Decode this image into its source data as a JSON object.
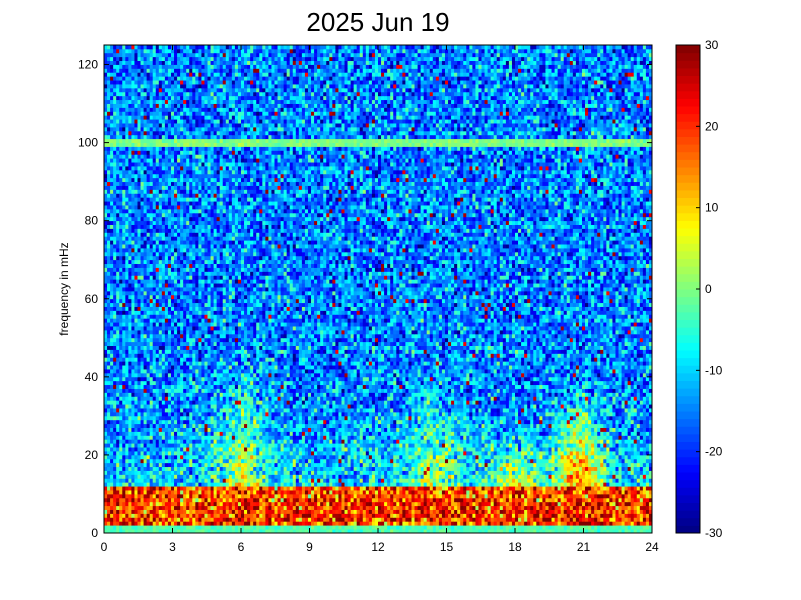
{
  "chart_data": {
    "type": "heatmap",
    "title": "2025 Jun 19",
    "xlabel": "",
    "ylabel": "frequency in mHz",
    "xlim": [
      0,
      24
    ],
    "ylim": [
      0,
      125
    ],
    "x_ticks": [
      0,
      3,
      6,
      9,
      12,
      15,
      18,
      21,
      24
    ],
    "y_ticks": [
      0,
      20,
      40,
      60,
      80,
      100,
      120
    ],
    "colorbar": {
      "colormap": "jet",
      "range": [
        -30,
        30
      ],
      "ticks": [
        -30,
        -20,
        -10,
        0,
        10,
        20,
        30
      ]
    },
    "grid": false,
    "features": {
      "background_level": -15,
      "horizontal_lines": [
        {
          "frequency": 100,
          "level": 0
        },
        {
          "frequency": 1,
          "level": -3
        }
      ],
      "low_frequency_band": {
        "frequency_range": [
          2,
          12
        ],
        "level": 20
      },
      "bursts": [
        {
          "time": 6.0,
          "frequency_max": 50,
          "level": 8
        },
        {
          "time": 14.5,
          "frequency_max": 45,
          "level": 5
        },
        {
          "time": 18.0,
          "frequency_max": 25,
          "level": 22
        },
        {
          "time": 20.8,
          "frequency_max": 40,
          "level": 25
        }
      ]
    }
  }
}
